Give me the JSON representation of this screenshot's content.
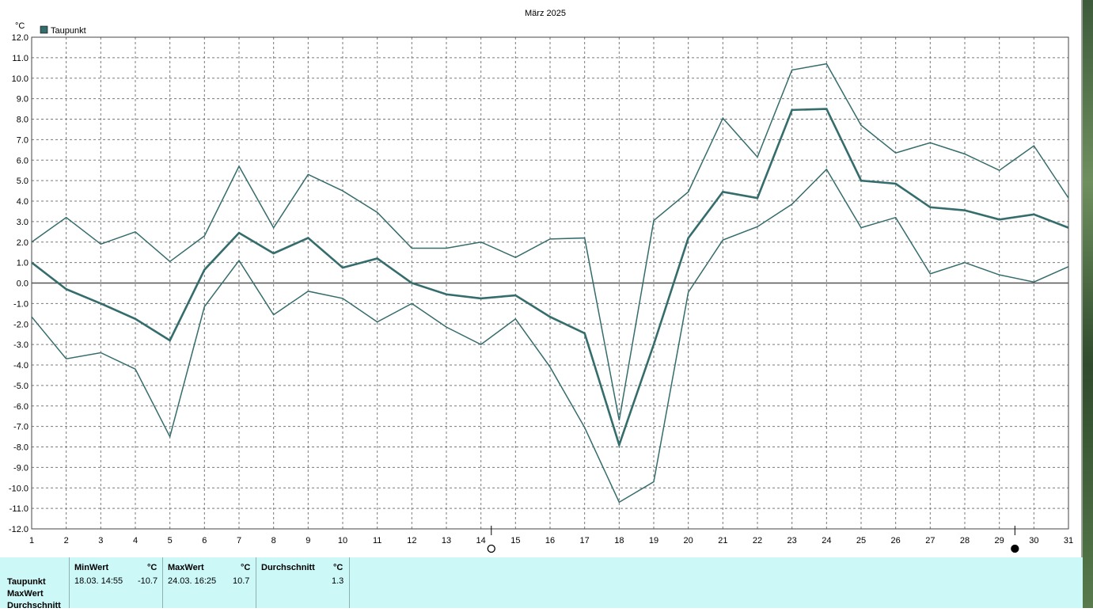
{
  "chart_data": {
    "type": "line",
    "title": "März 2025",
    "unit_label": "°C",
    "legend": [
      {
        "label": "Taupunkt",
        "color": "#356c6c"
      }
    ],
    "legend_position": "top-left",
    "x": [
      1,
      2,
      3,
      4,
      5,
      6,
      7,
      8,
      9,
      10,
      11,
      12,
      13,
      14,
      15,
      16,
      17,
      18,
      19,
      20,
      21,
      22,
      23,
      24,
      25,
      26,
      27,
      28,
      29,
      30,
      31
    ],
    "xlim": [
      1,
      31
    ],
    "ylim": [
      -12,
      12
    ],
    "yticks": [
      "12.0",
      "11.0",
      "10.0",
      "9.0",
      "8.0",
      "7.0",
      "6.0",
      "5.0",
      "4.0",
      "3.0",
      "2.0",
      "1.0",
      "0.0",
      "-1.0",
      "-2.0",
      "-3.0",
      "-4.0",
      "-5.0",
      "-6.0",
      "-7.0",
      "-8.0",
      "-9.0",
      "-10.0",
      "-11.0",
      "-12.0"
    ],
    "grid": true,
    "zero_line": true,
    "series": [
      {
        "role": "max",
        "values": [
          2.0,
          3.2,
          1.9,
          2.5,
          1.05,
          2.3,
          5.7,
          2.7,
          5.3,
          4.5,
          3.45,
          1.7,
          1.7,
          2.0,
          1.25,
          2.15,
          2.2,
          -6.7,
          3.05,
          4.45,
          8.05,
          6.15,
          10.4,
          10.7,
          7.7,
          6.35,
          6.85,
          6.3,
          5.5,
          6.7,
          4.15
        ]
      },
      {
        "role": "mean",
        "values": [
          1.0,
          -0.3,
          -1.0,
          -1.75,
          -2.8,
          0.65,
          2.45,
          1.45,
          2.2,
          0.75,
          1.2,
          0.0,
          -0.55,
          -0.75,
          -0.6,
          -1.65,
          -2.45,
          -7.9,
          -3.0,
          2.2,
          4.45,
          4.15,
          8.45,
          8.5,
          5.0,
          4.85,
          3.7,
          3.55,
          3.1,
          3.35,
          2.7
        ]
      },
      {
        "role": "min",
        "values": [
          -1.65,
          -3.7,
          -3.4,
          -4.2,
          -7.5,
          -1.15,
          1.1,
          -1.55,
          -0.4,
          -0.75,
          -1.9,
          -1.0,
          -2.15,
          -3.0,
          -1.75,
          -4.1,
          -7.05,
          -10.7,
          -9.7,
          -0.45,
          2.1,
          2.75,
          3.85,
          5.55,
          2.7,
          3.2,
          0.45,
          1.0,
          0.4,
          0.05,
          0.8
        ]
      }
    ],
    "moon_phases": [
      {
        "day": 14.3,
        "phase": "full-moon",
        "symbol": "○"
      },
      {
        "day": 29.45,
        "phase": "new-moon",
        "symbol": "●"
      }
    ]
  },
  "stats": {
    "row_labels": [
      "Taupunkt",
      "MaxWert",
      "Durchschnitt"
    ],
    "columns": [
      {
        "header": "MinWert",
        "unit": "°C",
        "date": "18.03.  14:55",
        "value": "-10.7"
      },
      {
        "header": "MaxWert",
        "unit": "°C",
        "date": "24.03.  16:25",
        "value": "10.7"
      },
      {
        "header": "Durchschnitt",
        "unit": "°C",
        "date": "",
        "value": "1.3"
      }
    ]
  }
}
